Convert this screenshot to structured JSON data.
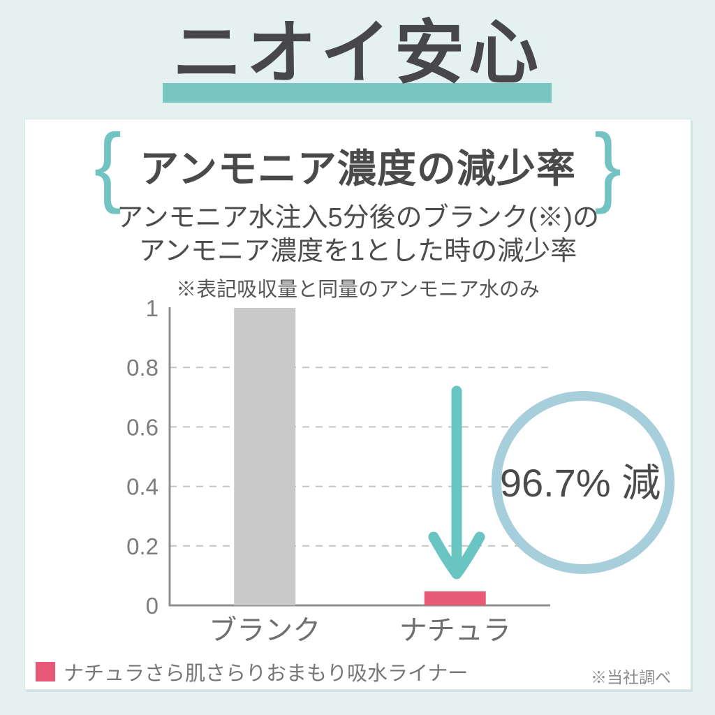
{
  "page": {
    "title": "ニオイ安心",
    "source_note": "※当社調べ"
  },
  "panel": {
    "brace_left": "{",
    "brace_right": "}",
    "heading": "アンモニア濃度の減少率",
    "subtitle_line1": "アンモニア水注入5分後のブランク(※)の",
    "subtitle_line2": "アンモニア濃度を1とした時の減少率",
    "note": "※表記吸収量と同量のアンモニア水のみ"
  },
  "chart_data": {
    "type": "bar",
    "title": "アンモニア濃度の減少率",
    "categories": [
      "ブランク",
      "ナチュラ"
    ],
    "values": [
      1,
      0.033
    ],
    "bar_colors": [
      "#c9c9c9",
      "#e75977"
    ],
    "xlabel": "",
    "ylabel": "",
    "ylim": [
      0,
      1
    ],
    "y_ticks": [
      0,
      0.2,
      0.4,
      0.6,
      0.8,
      1
    ],
    "y_tick_labels": [
      "0",
      "0.2",
      "0.4",
      "0.6",
      "0.8",
      "1"
    ],
    "grid": "horizontal-dashed",
    "annotation": "96.7% 減",
    "legend_position": "bottom-left",
    "legend": [
      {
        "label": "ナチュラさら肌さらりおまもり吸水ライナー",
        "color": "#e75977"
      }
    ]
  },
  "colors": {
    "background": "#e5f0f1",
    "card": "#ffffff",
    "accent_teal": "#77c6c2",
    "brace_teal": "#74c3c3",
    "arrow_teal": "#69c5c1",
    "circle_ring": "#a6cedb",
    "bar_gray": "#c9c9c9",
    "bar_pink": "#e75977",
    "text_dark": "#4a4a4c"
  }
}
